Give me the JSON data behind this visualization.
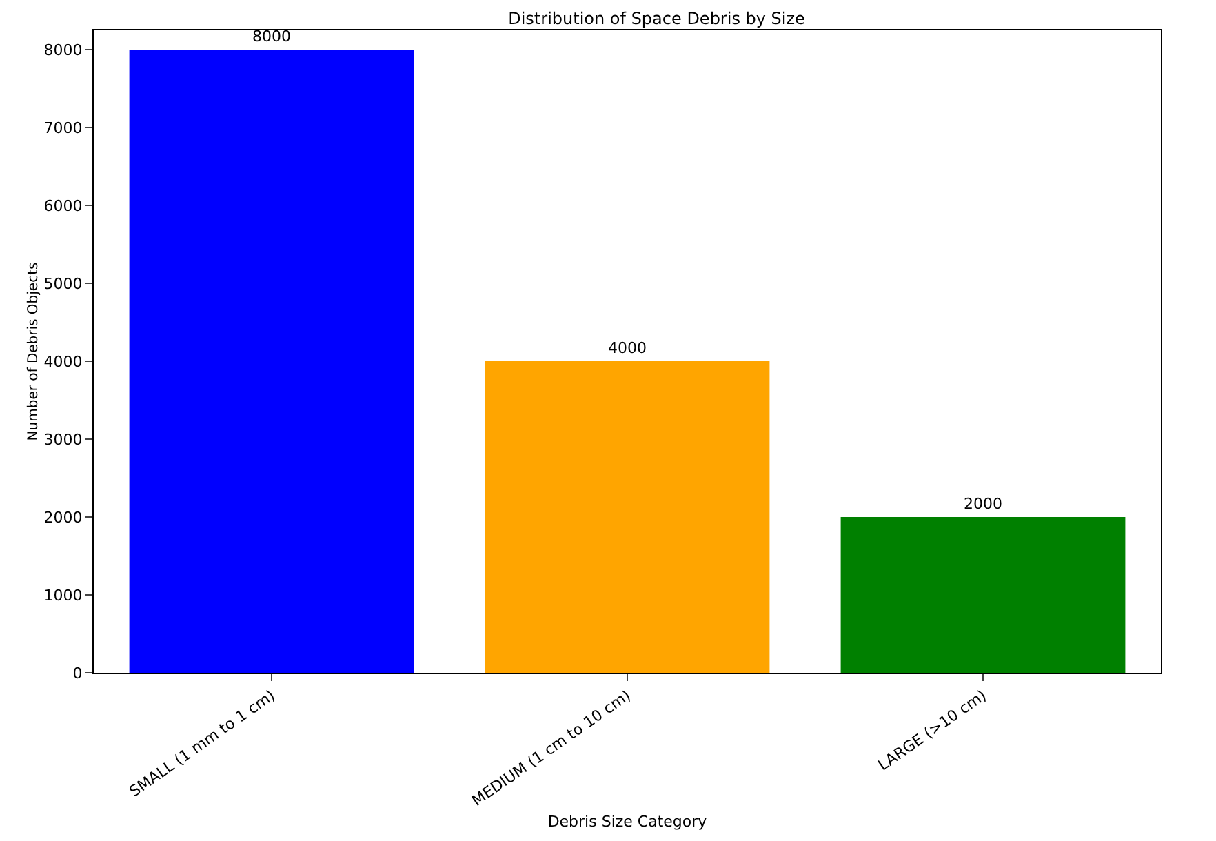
{
  "chart_data": {
    "type": "bar",
    "title": "Distribution of Space Debris by Size",
    "xlabel": "Debris Size Category",
    "ylabel": "Number of Debris Objects",
    "categories": [
      "SMALL (1 mm to 1 cm)",
      "MEDIUM (1 cm to 10 cm)",
      "LARGE (>10 cm)"
    ],
    "values": [
      8000,
      4000,
      2000
    ],
    "colors": [
      "#0000ff",
      "#ffa500",
      "#008000"
    ],
    "ylim": [
      0,
      8250
    ],
    "yticks": [
      0,
      1000,
      2000,
      3000,
      4000,
      5000,
      6000,
      7000,
      8000
    ],
    "data_labels": true
  }
}
